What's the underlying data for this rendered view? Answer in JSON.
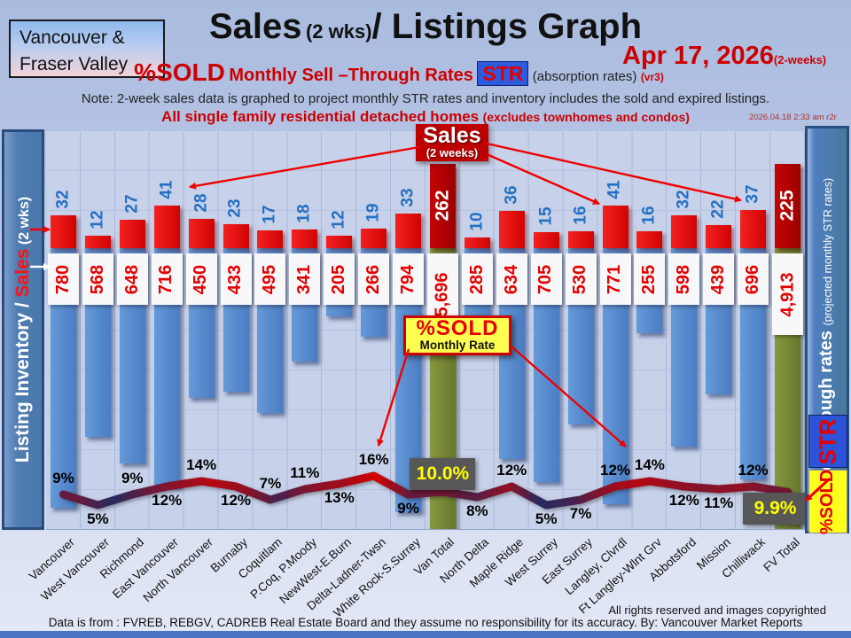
{
  "header": {
    "region_line1": "Vancouver &",
    "region_line2": "Fraser Valley",
    "title_sales": "Sales",
    "title_wks": "(2 wks)",
    "title_rest": "/ Listings Graph",
    "date": "Apr 17, 2026",
    "date_note": "(2-weeks)",
    "sub_pct_sold": "%SOLD",
    "sub_mid": "Monthly Sell –Through Rates",
    "sub_str": "STR",
    "sub_absorption": "(absorption rates)",
    "sub_version": "(vr3)",
    "note": "Note: 2-week sales data is graphed to project monthly STR rates and inventory includes the sold and expired listings.",
    "scope": "All single family residential detached homes",
    "scope_note": "(excludes townhomes and condos)",
    "timestamp": "2026.04.18 2:33 am r2r"
  },
  "left_axis": {
    "label_white": "Listing Inventory / ",
    "label_red": "Sales",
    "label_suffix": " (2  wks)"
  },
  "right_axis": {
    "label_bold": "Sell-through rates ",
    "label_small": " (projected monthly STR rates)",
    "str_badge": "STR",
    "pct_sold_badge": "%SOLD"
  },
  "callouts": {
    "sales_title": "Sales",
    "sales_sub": "(2 weeks)",
    "pct_sold_title": "%SOLD",
    "pct_sold_sub": "Monthly Rate"
  },
  "footer": {
    "rights": "All rights reserved and  images copyrighted",
    "source": "Data is from : FVREB, REBGV, CADREB Real Estate Board and they assume no responsibility for its accuracy. By: Vancouver Market Reports"
  },
  "chart_data": {
    "type": "bar+line",
    "title": "Sales (2 wks) / Listings Graph — %SOLD Monthly Sell-Through Rates",
    "categories": [
      "Vancouver",
      "West Vancouver",
      "Richmond",
      "East Vancouver",
      "North Vancouver",
      "Burnaby",
      "Coquitlam",
      "P.Coq, P.Moody",
      "NewWest-E.Burn",
      "Delta-Ladner-Twsn",
      "White Rock-S.Surrey",
      "Van Total",
      "North Delta",
      "Maple Ridge",
      "West Surrey",
      "East Surrey",
      "Langley, Clvrdl",
      "Ft Langley-Wlnt Grv",
      "Abbotsford",
      "Mission",
      "Chilliwack",
      "FV Total"
    ],
    "series": [
      {
        "name": "Sales (2 weeks)",
        "values": [
          32,
          12,
          27,
          41,
          28,
          23,
          17,
          18,
          12,
          19,
          33,
          262,
          10,
          36,
          15,
          16,
          41,
          16,
          32,
          22,
          37,
          225
        ]
      },
      {
        "name": "Listing Inventory (incl. sold and expired)",
        "values": [
          780,
          568,
          648,
          716,
          450,
          433,
          495,
          341,
          205,
          266,
          794,
          5696,
          285,
          634,
          705,
          530,
          771,
          255,
          598,
          439,
          696,
          4913
        ]
      },
      {
        "name": "%SOLD monthly sell-through rate",
        "values": [
          9,
          5,
          9,
          12,
          14,
          12,
          7,
          11,
          13,
          16,
          9,
          10.0,
          8,
          12,
          5,
          7,
          12,
          14,
          12,
          11,
          12,
          9.9
        ]
      }
    ],
    "inventory_labels": [
      "780",
      "568",
      "648",
      "716",
      "450",
      "433",
      "495",
      "341",
      "205",
      "266",
      "794",
      "5,696",
      "285",
      "634",
      "705",
      "530",
      "771",
      "255",
      "598",
      "439",
      "696",
      "4,913"
    ],
    "pct_labels": [
      "9%",
      "5%",
      "9%",
      "12%",
      "14%",
      "12%",
      "7%",
      "11%",
      "13%",
      "16%",
      "9%",
      "10.0%",
      "8%",
      "12%",
      "5%",
      "7%",
      "12%",
      "14%",
      "12%",
      "11%",
      "12%",
      "9.9%"
    ],
    "pct_side": [
      "above",
      "below",
      "above",
      "below",
      "above",
      "below",
      "above",
      "above",
      "below",
      "above",
      "below",
      "box-above",
      "below",
      "above",
      "below",
      "below",
      "above",
      "above",
      "below",
      "below",
      "above",
      "box-below"
    ],
    "total_indices": [
      11,
      21
    ],
    "legend_position": "none",
    "grid": true,
    "colors": {
      "sales_bar": "#e31212",
      "total_sales_bar": "#b80000",
      "inventory_bar": "#5587cd",
      "total_inventory_bar": "#7a8c3c",
      "sales_number_text": "#2570c2",
      "inventory_number_text": "#e60000",
      "line_low": "#252a60",
      "line_high": "#d40000",
      "pct_box_bg": "#575757",
      "pct_box_text": "#ffff00"
    }
  }
}
